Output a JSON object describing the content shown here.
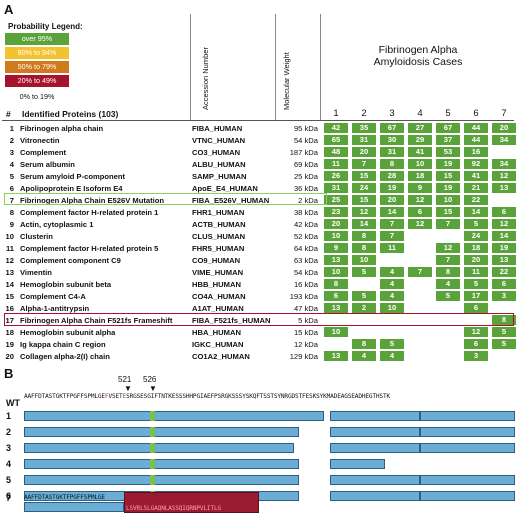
{
  "panelA": {
    "label": "A",
    "legend": {
      "title": "Probability Legend:",
      "items": [
        {
          "label": "over 95%",
          "color": "#5aa33a"
        },
        {
          "label": "80% to 94%",
          "color": "#f2c230"
        },
        {
          "label": "50% to 79%",
          "color": "#d07a1c"
        },
        {
          "label": "20% to 49%",
          "color": "#a5142c"
        }
      ],
      "plain": "0% to 19%"
    },
    "col_accession": "Accession Number",
    "col_mw": "Molecular Weight",
    "cases_title": "Fibrinogen Alpha\nAmyloidosis Cases",
    "case_numbers": [
      "1",
      "2",
      "3",
      "4",
      "5",
      "6",
      "7"
    ],
    "hdr_num": "#",
    "hdr_name": "Identified Proteins (103)",
    "rows": [
      {
        "num": "1",
        "name": "Fibrinogen alpha chain",
        "acc": "FIBA_HUMAN",
        "mw": "95 kDa",
        "vals": [
          "42",
          "35",
          "67",
          "27",
          "67",
          "44",
          "20"
        ]
      },
      {
        "num": "2",
        "name": "Vitronectin",
        "acc": "VTNC_HUMAN",
        "mw": "54 kDa",
        "vals": [
          "65",
          "31",
          "30",
          "29",
          "37",
          "44",
          "34"
        ]
      },
      {
        "num": "3",
        "name": "Complement",
        "acc": "CO3_HUMAN",
        "mw": "187 kDa",
        "vals": [
          "48",
          "20",
          "31",
          "41",
          "53",
          "16",
          ""
        ]
      },
      {
        "num": "4",
        "name": "Serum albumin",
        "acc": "ALBU_HUMAN",
        "mw": "69 kDa",
        "vals": [
          "11",
          "7",
          "8",
          "10",
          "19",
          "92",
          "34"
        ]
      },
      {
        "num": "5",
        "name": "Serum amyloid P-component",
        "acc": "SAMP_HUMAN",
        "mw": "25 kDa",
        "vals": [
          "26",
          "15",
          "28",
          "18",
          "15",
          "41",
          "12"
        ]
      },
      {
        "num": "6",
        "name": "Apolipoprotein E Isoform E4",
        "acc": "ApoE_E4_HUMAN",
        "mw": "36 kDa",
        "vals": [
          "31",
          "24",
          "19",
          "9",
          "19",
          "21",
          "13"
        ]
      },
      {
        "num": "7",
        "name": "Fibrinogen Alpha Chain E526V Mutation",
        "acc": "FIBA_E526V_HUMAN",
        "mw": "2 kDa",
        "vals": [
          "25",
          "15",
          "20",
          "12",
          "10",
          "22",
          ""
        ]
      },
      {
        "num": "8",
        "name": "Complement factor  H-related protein 1",
        "acc": "FHR1_HUMAN",
        "mw": "38 kDa",
        "vals": [
          "23",
          "12",
          "14",
          "6",
          "15",
          "14",
          "6"
        ]
      },
      {
        "num": "9",
        "name": "Actin, cytoplasmic 1",
        "acc": "ACTB_HUMAN",
        "mw": "42 kDa",
        "vals": [
          "20",
          "14",
          "7",
          "12",
          "7",
          "5",
          "12"
        ]
      },
      {
        "num": "10",
        "name": "Clusterin",
        "acc": "CLUS_HUMAN",
        "mw": "52 kDa",
        "vals": [
          "10",
          "8",
          "7",
          "",
          "",
          "24",
          "14"
        ]
      },
      {
        "num": "11",
        "name": "Complement factor H-related protein 5",
        "acc": "FHR5_HUMAN",
        "mw": "64 kDa",
        "vals": [
          "9",
          "8",
          "11",
          "",
          "12",
          "18",
          "19"
        ]
      },
      {
        "num": "12",
        "name": "Complement component C9",
        "acc": "CO9_HUMAN",
        "mw": "63 kDa",
        "vals": [
          "13",
          "10",
          "",
          "",
          "7",
          "20",
          "13"
        ]
      },
      {
        "num": "13",
        "name": "Vimentin",
        "acc": "VIME_HUMAN",
        "mw": "54 kDa",
        "vals": [
          "10",
          "5",
          "4",
          "7",
          "8",
          "11",
          "22"
        ]
      },
      {
        "num": "14",
        "name": "Hemoglobin subunit beta",
        "acc": "HBB_HUMAN",
        "mw": "16 kDa",
        "vals": [
          "8",
          "",
          "4",
          "",
          "4",
          "5",
          "6"
        ]
      },
      {
        "num": "15",
        "name": "Complement C4-A",
        "acc": "CO4A_HUMAN",
        "mw": "193 kDa",
        "vals": [
          "6",
          "5",
          "4",
          "",
          "5",
          "17",
          "3"
        ]
      },
      {
        "num": "16",
        "name": "Alpha-1-antitrypsin",
        "acc": "A1AT_HUMAN",
        "mw": "47 kDa",
        "vals": [
          "13",
          "2",
          "10",
          "",
          "",
          "6",
          ""
        ]
      },
      {
        "num": "17",
        "name": "Fibrinogen Alpha Chain F521fs Frameshift",
        "acc": "FIBA_F521fs_HUMAN",
        "mw": "5 kDa",
        "vals": [
          "",
          "",
          "",
          "",
          "",
          "",
          "8"
        ]
      },
      {
        "num": "18",
        "name": "Hemoglobin subunit alpha",
        "acc": "HBA_HUMAN",
        "mw": "15 kDa",
        "vals": [
          "10",
          "",
          "",
          "",
          "",
          "12",
          "5"
        ]
      },
      {
        "num": "19",
        "name": "Ig kappa chain C region",
        "acc": "IGKC_HUMAN",
        "mw": "12 kDa",
        "vals": [
          "",
          "8",
          "5",
          "",
          "",
          "6",
          "5"
        ]
      },
      {
        "num": "20",
        "name": "Collagen alpha-2(I) chain",
        "acc": "CO1A2_HUMAN",
        "mw": "129 kDa",
        "vals": [
          "13",
          "4",
          "4",
          "",
          "",
          "3",
          ""
        ]
      }
    ]
  },
  "panelB": {
    "label": "B",
    "marker1": "521",
    "marker2": "526",
    "seq_prefix": "AAFFDTASTGKTFPGFFSPMLGE",
    "seq_f": "F",
    "seq_mid1": "VSET",
    "seq_e": "E",
    "seq_rest": "SRGSESGIFTNTKESSSHHPGIAEFPSRGKSSSYSKQFTSSTSYNRGDSTFESKSYKMADEAGSEADHEGTHSTK",
    "frameshift_prefix": "AAFFDTASTGKTFPGFFSPMLGE",
    "frameshift_seq": "LSVRLSLGAQNLASSQIQRNPVLITLG",
    "row_labels": [
      "WT",
      "1",
      "2",
      "3",
      "4",
      "5",
      "6",
      "7"
    ]
  }
}
